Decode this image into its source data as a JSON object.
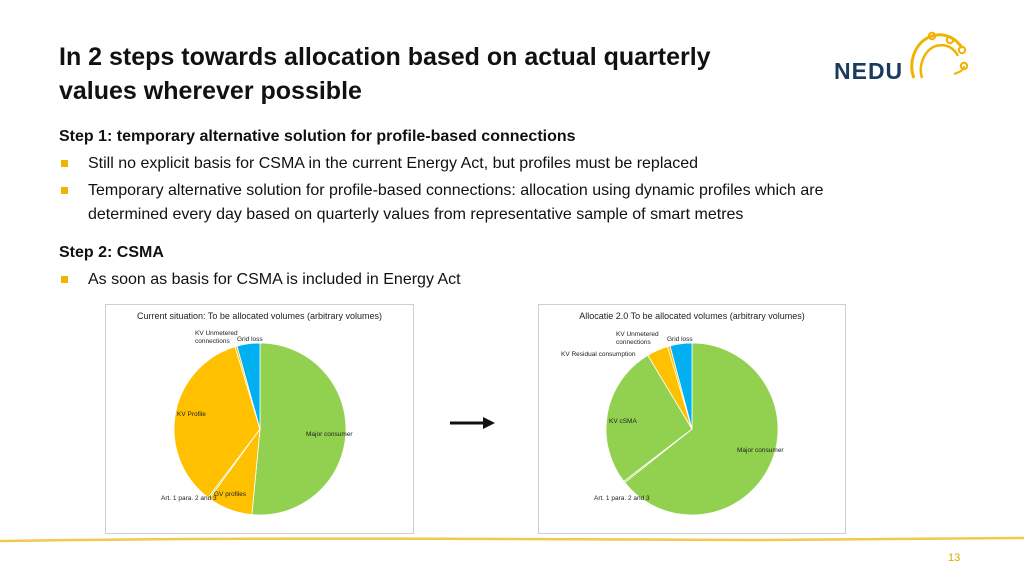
{
  "slide": {
    "title_line1": "In 2 steps towards allocation based on actual quarterly",
    "title_line2": "values wherever possible",
    "logo_text": "NEDU",
    "step1_heading": "Step 1: temporary alternative solution for profile-based connections",
    "step1_bullets": [
      "Still no explicit basis for CSMA in the current Energy Act, but profiles must be replaced",
      "Temporary alternative solution for profile-based connections: allocation using dynamic profiles which are",
      "determined every day based on quarterly values from representative sample of smart metres"
    ],
    "step2_heading": "Step 2: CSMA",
    "step2_bullets": [
      "As soon as basis for CSMA is included in Energy Act"
    ],
    "page_number": "13"
  },
  "colors": {
    "accent": "#f0b400",
    "logo_navy": "#1b3a5c",
    "major_consumer": "#92d050",
    "kv_profile": "#ffc000",
    "gv_profiles": "#ffc000",
    "grid_loss": "#00b0f0",
    "slice_stroke": "#ffffff"
  },
  "chart_data": [
    {
      "type": "pie",
      "title": "Current situation: To be allocated volumes (arbitrary volumes)",
      "slices": [
        {
          "label": "Major consumer",
          "value": 51.5,
          "color": "#92d050"
        },
        {
          "label": "GV profiles",
          "value": 8.5,
          "color": "#ffc000"
        },
        {
          "label": "Art. 1 para. 2 and 3",
          "value": 0.3,
          "color": "#92d050"
        },
        {
          "label": "KV Profile",
          "value": 35.0,
          "color": "#ffc000"
        },
        {
          "label": "KV Unmetered connections",
          "value": 0.4,
          "color": "#ffc000"
        },
        {
          "label": "Grid loss",
          "value": 4.3,
          "color": "#00b0f0"
        }
      ]
    },
    {
      "type": "pie",
      "title": "Allocatie 2.0 To be allocated volumes (arbitrary volumes)",
      "slices": [
        {
          "label": "Major consumer",
          "value": 64.3,
          "color": "#92d050"
        },
        {
          "label": "Art. 1 para. 2 and 3",
          "value": 0.3,
          "color": "#92d050"
        },
        {
          "label": "KV cSMA",
          "value": 26.8,
          "color": "#92d050"
        },
        {
          "label": "KV Residual consumption",
          "value": 4.0,
          "color": "#ffc000"
        },
        {
          "label": "KV Unmetered connections",
          "value": 0.5,
          "color": "#ffc000"
        },
        {
          "label": "Grid loss",
          "value": 4.1,
          "color": "#00b0f0"
        }
      ]
    }
  ]
}
